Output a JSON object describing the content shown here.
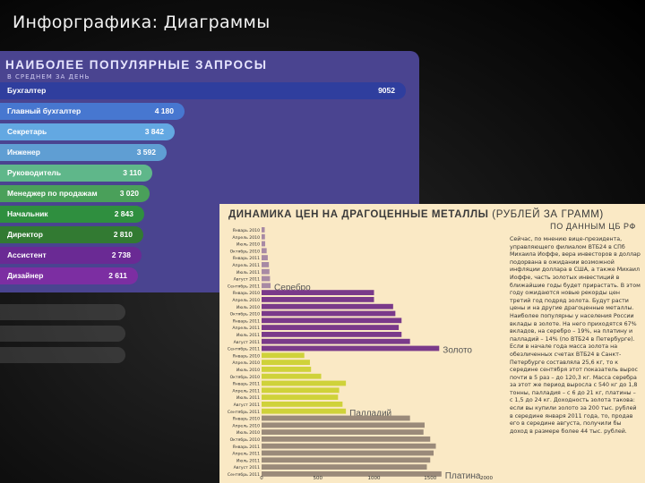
{
  "slide_title": "Инфорграфика: Диаграммы",
  "requests_panel": {
    "title": "НАИБОЛЕЕ ПОПУЛЯРНЫЕ ЗАПРОСЫ",
    "subtitle": "В СРЕДНЕМ ЗА ДЕНЬ",
    "chart_data": {
      "type": "bar",
      "categories": [
        "Бухгалтер",
        "Главный бухгалтер",
        "Секретарь",
        "Инженер",
        "Руководитель",
        "Менеджер по продажам",
        "Начальник",
        "Директор",
        "Ассистент",
        "Дизайнер"
      ],
      "values": [
        9052,
        4180,
        3842,
        3592,
        3110,
        3020,
        2843,
        2810,
        2738,
        2611
      ],
      "value_labels": [
        "9052",
        "4 180",
        "3 842",
        "3 592",
        "3 110",
        "3 020",
        "2 843",
        "2 810",
        "2 738",
        "2 611"
      ],
      "colors": [
        "#2f3e9e",
        "#4777d0",
        "#63a8e2",
        "#5f9ed3",
        "#5fb78a",
        "#4aa05a",
        "#2f8f3f",
        "#327a32",
        "#6a2a94",
        "#7c2ea2"
      ]
    }
  },
  "metals_panel": {
    "title_bold": "ДИНАМИКА ЦЕН НА ДРАГОЦЕННЫЕ МЕТАЛЛЫ",
    "title_light": "(РУБЛЕЙ ЗА ГРАММ)",
    "subtitle": "ПО ДАННЫМ ЦБ РФ",
    "body_text": "Сейчас, по мнению вице-президента, управляющего филиалом ВТБ24 в СПб Михаила Иоффе, вера инвесторов в доллар подорвана в ожидании возможной инфляции доллара в США, а также Михаил Иоффе, часть золотых инвестиций в ближайшие годы будет прирастать. В этом году ожидаются новые рекорды цен третий год подряд золота. Будут расти цены и на другие драгоценные металлы. Наиболее популярны у населения России вклады в золоте. На него приходятся 67% вкладов, на серебро – 19%, на платину и палладий – 14% (по ВТБ24 в Петербурге). Если в начале года масса золота на обезличенных счетах ВТБ24 в Санкт-Петербурге составляла 25,6 кг, то к середине сентября этот показатель вырос почти в 5 раз – до 120,3 кг. Масса серебра за этот же период выросла с 540 кг до 1,8 тонны, палладия – с 6 до 21 кг, платины – с 1,5 до 24 кг. Доходность золота такова: если вы купили золото за 200 тыс. рублей в середине января 2011 года, то, продав его в середине августа, получили бы доход в размере более 44 тыс. рублей.",
    "chart_data": {
      "type": "bar",
      "orientation": "horizontal",
      "xlim": [
        0,
        2000
      ],
      "x_ticks": [
        "0",
        "500",
        "1000",
        "1500",
        "2000"
      ],
      "series": [
        {
          "name": "Серебро",
          "color": "#a88aa4",
          "categories": [
            "Январь 2010",
            "Апрель 2010",
            "Июль 2010",
            "Октябрь 2010",
            "Январь 2011",
            "Апрель 2011",
            "Июль 2011",
            "Август 2011",
            "Сентябрь 2011"
          ],
          "values": [
            28,
            30,
            32,
            45,
            55,
            65,
            70,
            75,
            80
          ]
        },
        {
          "name": "Золото",
          "color": "#7a3a8a",
          "categories": [
            "Январь 2010",
            "Апрель 2010",
            "Июль 2010",
            "Октябрь 2010",
            "Январь 2011",
            "Апрель 2011",
            "Июль 2011",
            "Август 2011",
            "Сентябрь 2011"
          ],
          "values": [
            1000,
            1000,
            1170,
            1190,
            1245,
            1220,
            1245,
            1320,
            1580
          ]
        },
        {
          "name": "Палладий",
          "color": "#cfd23a",
          "categories": [
            "Январь 2010",
            "Апрель 2010",
            "Июль 2010",
            "Октябрь 2010",
            "Январь 2011",
            "Апрель 2011",
            "Июль 2011",
            "Август 2011",
            "Сентябрь 2011"
          ],
          "values": [
            380,
            430,
            440,
            530,
            750,
            690,
            680,
            720,
            750
          ]
        },
        {
          "name": "Платина",
          "color": "#9a8a7a",
          "categories": [
            "Январь 2010",
            "Апрель 2010",
            "Июль 2010",
            "Октябрь 2010",
            "Январь 2011",
            "Апрель 2011",
            "Июль 2011",
            "Август 2011",
            "Сентябрь 2011"
          ],
          "values": [
            1320,
            1450,
            1440,
            1500,
            1550,
            1530,
            1500,
            1470,
            1600
          ]
        }
      ]
    }
  }
}
